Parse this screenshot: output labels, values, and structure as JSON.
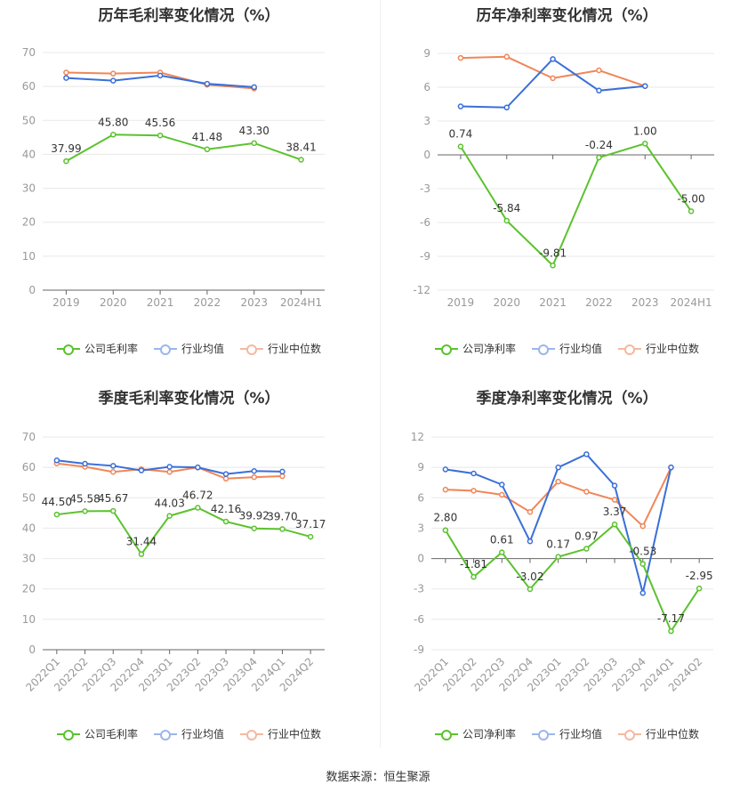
{
  "colors": {
    "company": "#5bc22e",
    "mean": "#3a6fd8",
    "median": "#f08659",
    "grid": "#e8e8e8",
    "axis": "#666666",
    "tick": "#999999"
  },
  "legend_labels": {
    "gross": "公司毛利率",
    "net": "公司净利率",
    "mean": "行业均值",
    "median": "行业中位数"
  },
  "footer": "数据来源：恒生聚源",
  "chart_data": [
    {
      "type": "line",
      "title": "历年毛利率变化情况（%）",
      "categories": [
        "2019",
        "2020",
        "2021",
        "2022",
        "2023",
        "2024H1"
      ],
      "ylim": [
        0,
        70
      ],
      "yticks": [
        0,
        10,
        20,
        30,
        40,
        50,
        60,
        70
      ],
      "grid": true,
      "legend": "bottom",
      "rotate_labels": false,
      "series": [
        {
          "name": "公司毛利率",
          "key": "company",
          "values": [
            37.99,
            45.8,
            45.56,
            41.48,
            43.3,
            38.41
          ],
          "labels": [
            "37.99",
            "45.80",
            "45.56",
            "41.48",
            "43.30",
            "38.41"
          ]
        },
        {
          "name": "行业均值",
          "key": "mean",
          "values": [
            62.5,
            61.7,
            63.2,
            60.8,
            59.8,
            null
          ]
        },
        {
          "name": "行业中位数",
          "key": "median",
          "values": [
            64.1,
            63.8,
            64.1,
            60.5,
            59.4,
            null
          ]
        }
      ]
    },
    {
      "type": "line",
      "title": "历年净利率变化情况（%）",
      "categories": [
        "2019",
        "2020",
        "2021",
        "2022",
        "2023",
        "2024H1"
      ],
      "ylim": [
        -12,
        9
      ],
      "yticks": [
        -12,
        -9,
        -6,
        -3,
        0,
        3,
        6,
        9
      ],
      "grid": true,
      "legend": "bottom",
      "rotate_labels": false,
      "series": [
        {
          "name": "公司净利率",
          "key": "company",
          "values": [
            0.74,
            -5.84,
            -9.81,
            -0.24,
            1.0,
            -5.0
          ],
          "labels": [
            "0.74",
            "-5.84",
            "-9.81",
            "-0.24",
            "1.00",
            "-5.00"
          ]
        },
        {
          "name": "行业均值",
          "key": "mean",
          "values": [
            4.3,
            4.2,
            8.5,
            5.7,
            6.1,
            null
          ]
        },
        {
          "name": "行业中位数",
          "key": "median",
          "values": [
            8.6,
            8.7,
            6.8,
            7.5,
            6.1,
            null
          ]
        }
      ]
    },
    {
      "type": "line",
      "title": "季度毛利率变化情况（%）",
      "categories": [
        "2022Q1",
        "2022Q2",
        "2022Q3",
        "2022Q4",
        "2023Q1",
        "2023Q2",
        "2023Q3",
        "2023Q4",
        "2024Q1",
        "2024Q2"
      ],
      "ylim": [
        0,
        70
      ],
      "yticks": [
        0,
        10,
        20,
        30,
        40,
        50,
        60,
        70
      ],
      "grid": true,
      "legend": "bottom",
      "rotate_labels": true,
      "series": [
        {
          "name": "公司毛利率",
          "key": "company",
          "values": [
            44.5,
            45.58,
            45.67,
            31.44,
            44.03,
            46.72,
            42.16,
            39.92,
            39.7,
            37.17
          ],
          "labels": [
            "44.50",
            "45.58",
            "45.67",
            "31.44",
            "44.03",
            "46.72",
            "42.16",
            "39.92",
            "39.70",
            "37.17"
          ]
        },
        {
          "name": "行业均值",
          "key": "mean",
          "values": [
            62.3,
            61.2,
            60.5,
            59.0,
            60.2,
            60.0,
            57.8,
            58.8,
            58.6,
            null
          ]
        },
        {
          "name": "行业中位数",
          "key": "median",
          "values": [
            61.3,
            60.2,
            58.5,
            59.4,
            58.5,
            60.0,
            56.3,
            56.8,
            57.1,
            null
          ]
        }
      ]
    },
    {
      "type": "line",
      "title": "季度净利率变化情况（%）",
      "categories": [
        "2022Q1",
        "2022Q2",
        "2022Q3",
        "2022Q4",
        "2023Q1",
        "2023Q2",
        "2023Q3",
        "2023Q4",
        "2024Q1",
        "2024Q2"
      ],
      "ylim": [
        -9,
        12
      ],
      "yticks": [
        -9,
        -6,
        -3,
        0,
        3,
        6,
        9,
        12
      ],
      "grid": true,
      "legend": "bottom",
      "rotate_labels": true,
      "series": [
        {
          "name": "公司净利率",
          "key": "company",
          "values": [
            2.8,
            -1.81,
            0.61,
            -3.02,
            0.17,
            0.97,
            3.37,
            -0.53,
            -7.17,
            -2.95
          ],
          "labels": [
            "2.80",
            "-1.81",
            "0.61",
            "-3.02",
            "0.17",
            "0.97",
            "3.37",
            "-0.53",
            "-7.17",
            "-2.95"
          ]
        },
        {
          "name": "行业均值",
          "key": "mean",
          "values": [
            8.8,
            8.4,
            7.3,
            1.7,
            9.0,
            10.3,
            7.2,
            -3.4,
            9.0,
            null
          ]
        },
        {
          "name": "行业中位数",
          "key": "median",
          "values": [
            6.8,
            6.7,
            6.3,
            4.6,
            7.6,
            6.6,
            5.8,
            3.2,
            9.0,
            null
          ]
        }
      ]
    }
  ]
}
